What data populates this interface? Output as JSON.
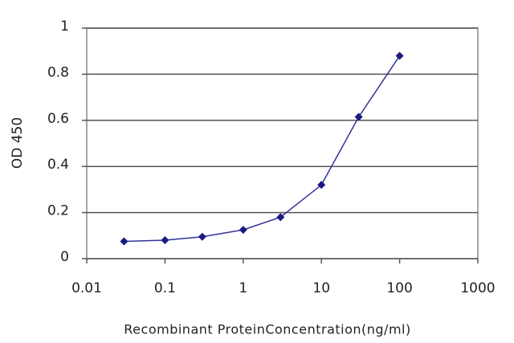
{
  "chart_data": {
    "type": "line",
    "x_label": "Recombinant ProteinConcentration(ng/ml)",
    "y_label": "OD 450",
    "x": [
      0.03,
      0.1,
      0.3,
      1,
      3,
      10,
      30,
      100
    ],
    "series": [
      {
        "color": "#333399",
        "values": [
          0.075,
          0.08,
          0.095,
          0.125,
          0.18,
          0.32,
          0.615,
          0.88
        ]
      }
    ],
    "xscale": "log",
    "xlim": [
      0.01,
      1000
    ],
    "xticks": [
      0.01,
      0.1,
      1,
      10,
      100,
      1000
    ],
    "ylim": [
      0,
      1
    ],
    "yticks": [
      0,
      0.2,
      0.4,
      0.6,
      0.8,
      1
    ],
    "grid": true
  }
}
